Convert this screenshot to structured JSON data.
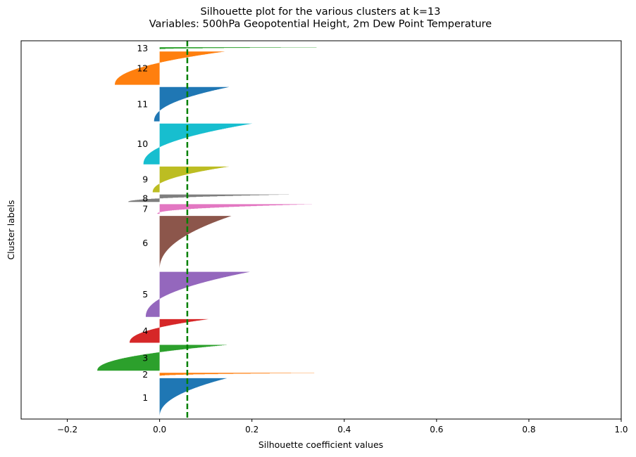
{
  "chart_data": {
    "type": "silhouette",
    "title_line1": "Silhouette plot for the various clusters at k=13",
    "title_line2": "Variables: 500hPa Geopotential Height, 2m Dew Point Temperature",
    "xlabel": "Silhouette coefficient values",
    "ylabel": "Cluster labels",
    "xlim": [
      -0.3,
      1.0
    ],
    "xticks": [
      {
        "value": -0.2,
        "label": "−0.2"
      },
      {
        "value": 0.0,
        "label": "0.0"
      },
      {
        "value": 0.2,
        "label": "0.2"
      },
      {
        "value": 0.4,
        "label": "0.4"
      },
      {
        "value": 0.6,
        "label": "0.6"
      },
      {
        "value": 0.8,
        "label": "0.8"
      },
      {
        "value": 1.0,
        "label": "1.0"
      }
    ],
    "average_silhouette": 0.06,
    "average_line_color": "#008000",
    "clusters": [
      {
        "label": "1",
        "color": "#1f77b4",
        "size": 180,
        "max": 0.145,
        "min": 0.0
      },
      {
        "label": "2",
        "color": "#ff7f0e",
        "size": 15,
        "max": 0.335,
        "min": 0.0
      },
      {
        "label": "3",
        "color": "#2ca02c",
        "size": 120,
        "max": 0.145,
        "min": -0.135
      },
      {
        "label": "4",
        "color": "#d62728",
        "size": 110,
        "max": 0.105,
        "min": -0.065
      },
      {
        "label": "5",
        "color": "#9467bd",
        "size": 210,
        "max": 0.195,
        "min": -0.03
      },
      {
        "label": "6",
        "color": "#8c564b",
        "size": 250,
        "max": 0.155,
        "min": 0.0
      },
      {
        "label": "7",
        "color": "#e377c2",
        "size": 45,
        "max": 0.33,
        "min": -0.005
      },
      {
        "label": "8",
        "color": "#7f7f7f",
        "size": 35,
        "max": 0.28,
        "min": -0.068
      },
      {
        "label": "9",
        "color": "#bcbd22",
        "size": 120,
        "max": 0.15,
        "min": -0.015
      },
      {
        "label": "10",
        "color": "#17becf",
        "size": 190,
        "max": 0.2,
        "min": -0.035
      },
      {
        "label": "11",
        "color": "#1f77b4",
        "size": 160,
        "max": 0.15,
        "min": -0.012
      },
      {
        "label": "12",
        "color": "#ff7f0e",
        "size": 155,
        "max": 0.14,
        "min": -0.097
      },
      {
        "label": "13",
        "color": "#2ca02c",
        "size": 10,
        "max": 0.34,
        "min": 0.0
      }
    ]
  }
}
